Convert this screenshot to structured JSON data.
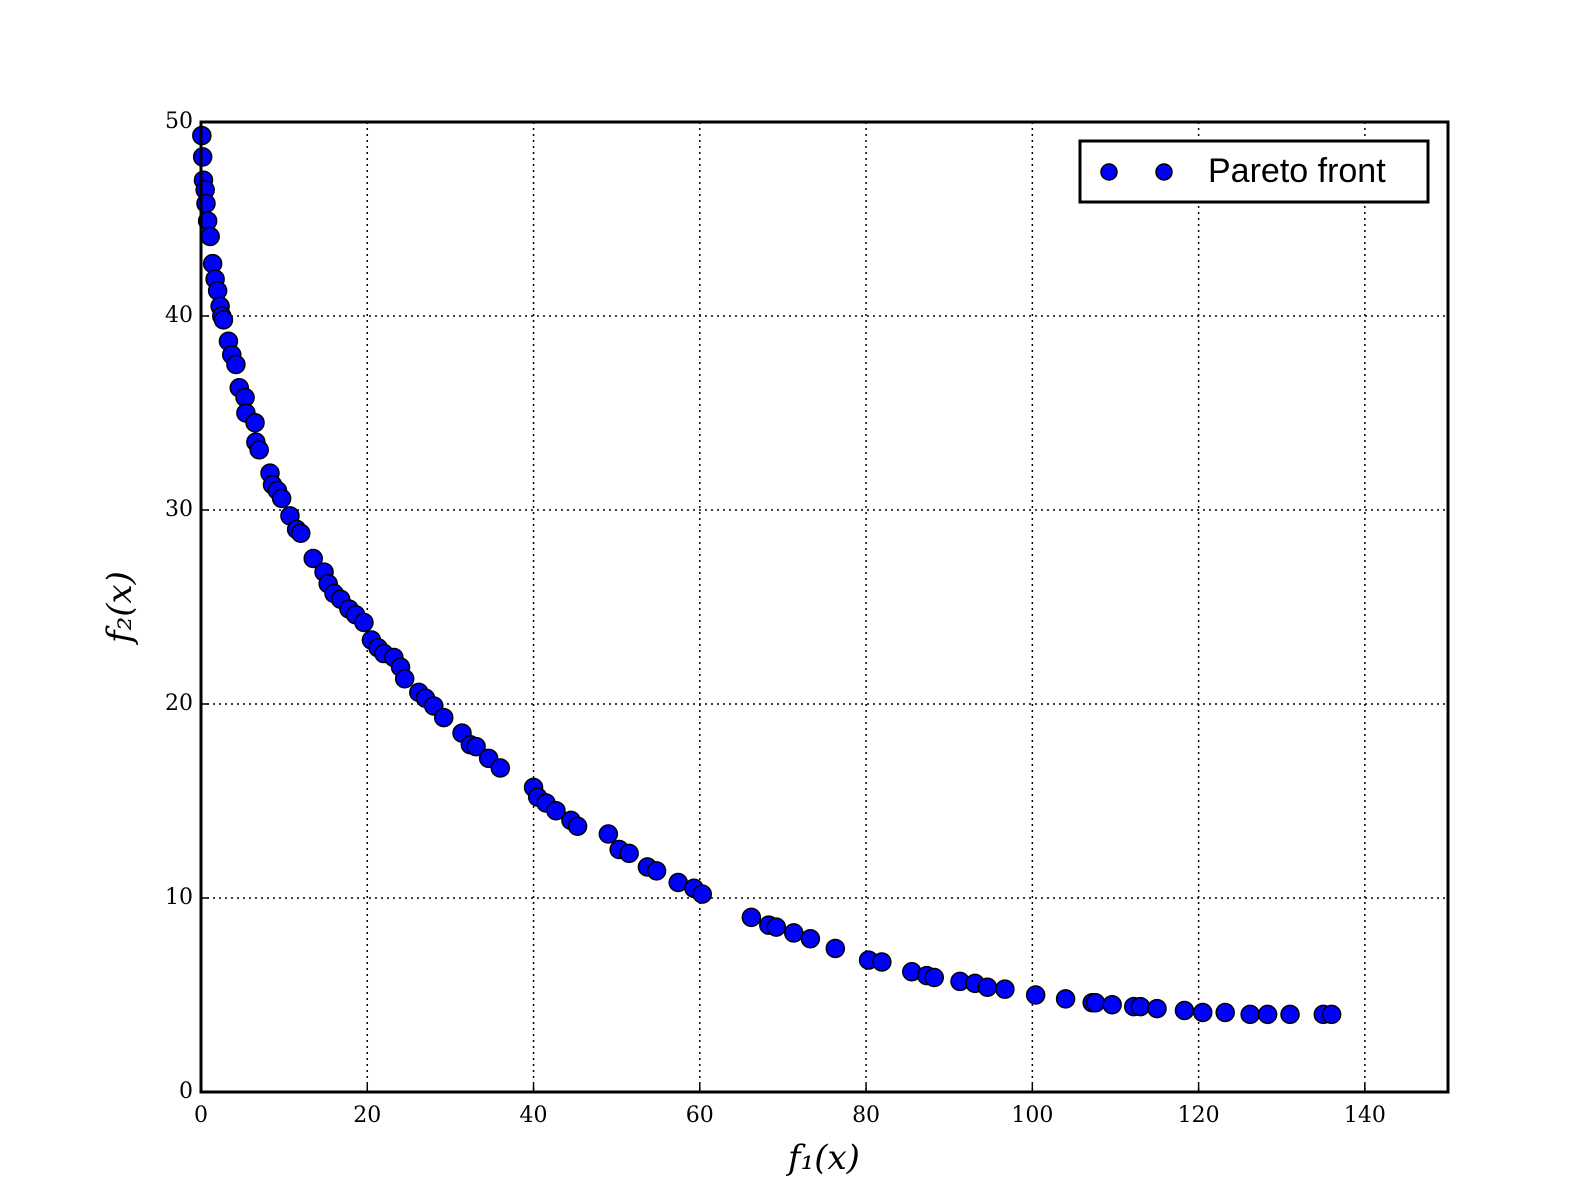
{
  "chart_data": {
    "type": "scatter",
    "xlabel": "f₁(x)",
    "ylabel": "f₂(x)",
    "xlim": [
      0,
      150
    ],
    "ylim": [
      0,
      50
    ],
    "xticks": [
      0,
      20,
      40,
      60,
      80,
      100,
      120,
      140
    ],
    "yticks": [
      0,
      10,
      20,
      30,
      40,
      50
    ],
    "grid": true,
    "legend": "upper right",
    "series": [
      {
        "name": "Pareto front",
        "color": "#0000ff",
        "x": [
          0.1,
          0.2,
          0.3,
          0.5,
          0.6,
          0.8,
          1.1,
          1.4,
          1.7,
          2,
          2.3,
          2.5,
          2.7,
          3.3,
          3.7,
          4.2,
          4.6,
          5.3,
          5.4,
          6.5,
          6.6,
          7,
          8.3,
          8.6,
          9.2,
          9.7,
          10.7,
          11.5,
          12,
          13.5,
          14.8,
          15.3,
          16,
          16.8,
          17.8,
          18.6,
          19.6,
          20.5,
          21.3,
          22,
          23.2,
          24,
          24.5,
          26.2,
          27,
          28,
          29.2,
          31.4,
          32.4,
          33.1,
          34.6,
          36,
          40,
          40.5,
          41.5,
          42.7,
          44.5,
          45.3,
          49,
          50.3,
          51.5,
          53.7,
          54.8,
          57.4,
          59.3,
          60.3,
          66.2,
          68.3,
          69.2,
          71.3,
          73.3,
          76.3,
          80.3,
          81.9,
          85.5,
          87.3,
          88.2,
          91.3,
          93.1,
          94.6,
          96.7,
          100.4,
          104,
          107.2,
          107.6,
          109.6,
          112.2,
          113,
          115,
          118.3,
          120.5,
          123.2,
          126.2,
          128.3,
          131,
          135,
          136
        ],
        "values": [
          49.3,
          48.2,
          47,
          46.5,
          45.8,
          44.9,
          44.1,
          42.7,
          41.9,
          41.3,
          40.5,
          40,
          39.8,
          38.7,
          38,
          37.5,
          36.3,
          35.8,
          35,
          34.5,
          33.5,
          33.1,
          31.9,
          31.3,
          31,
          30.6,
          29.7,
          29,
          28.8,
          27.5,
          26.8,
          26.2,
          25.7,
          25.4,
          24.9,
          24.6,
          24.2,
          23.3,
          22.9,
          22.6,
          22.4,
          21.9,
          21.3,
          20.6,
          20.3,
          19.9,
          19.3,
          18.5,
          17.9,
          17.8,
          17.2,
          16.7,
          15.7,
          15.2,
          14.9,
          14.5,
          14,
          13.7,
          13.3,
          12.5,
          12.3,
          11.6,
          11.4,
          10.8,
          10.5,
          10.2,
          9,
          8.6,
          8.5,
          8.2,
          7.9,
          7.4,
          6.8,
          6.7,
          6.2,
          6,
          5.9,
          5.7,
          5.6,
          5.4,
          5.3,
          5,
          4.8,
          4.6,
          4.6,
          4.5,
          4.4,
          4.4,
          4.3,
          4.2,
          4.1,
          4.1,
          4,
          4,
          4,
          4,
          4
        ]
      }
    ]
  }
}
